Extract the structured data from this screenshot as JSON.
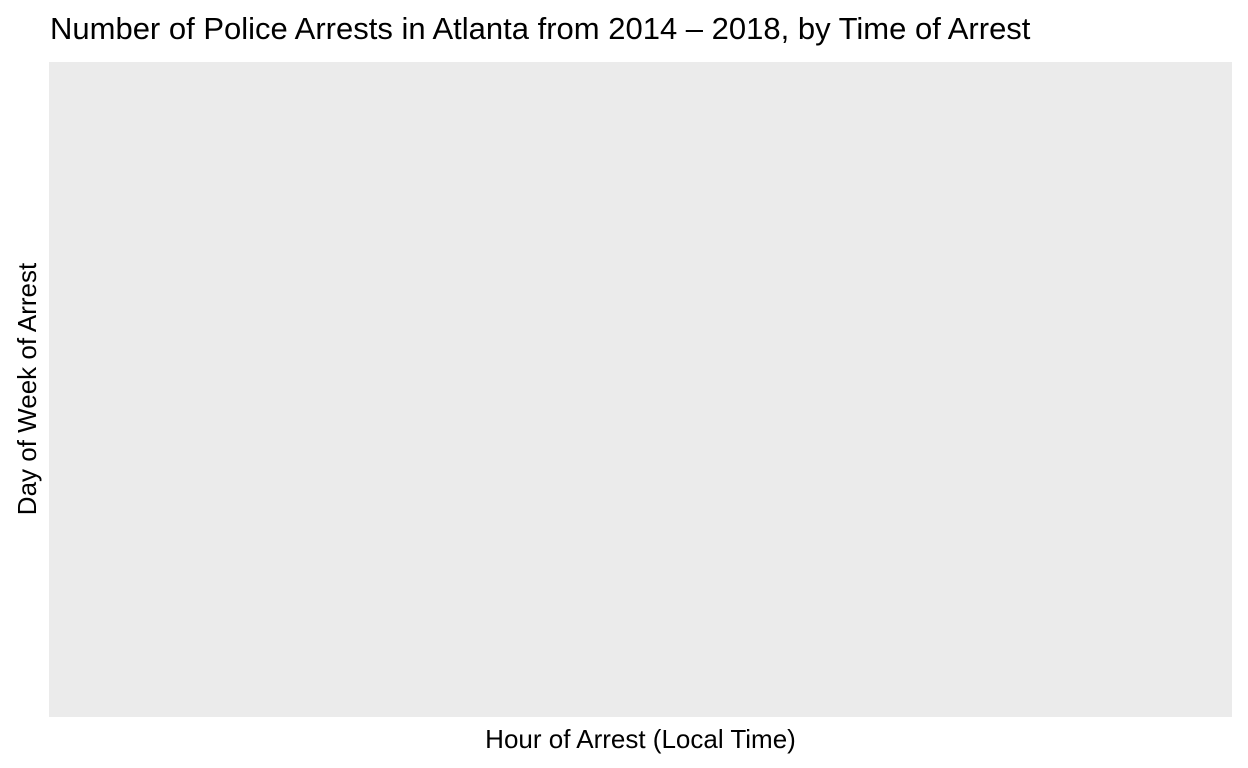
{
  "chart_data": {
    "type": "heatmap",
    "title": "Number of Police Arrests in Atlanta from 2014 – 2018, by Time of Arrest",
    "xlabel": "Hour of Arrest (Local Time)",
    "ylabel": "Day of Week of Arrest",
    "x": [],
    "y": [],
    "values": [],
    "grid": false,
    "legend": "none",
    "colors": {
      "panel_background": "#ebebeb",
      "text": "#000000",
      "page_background": "#ffffff"
    }
  }
}
